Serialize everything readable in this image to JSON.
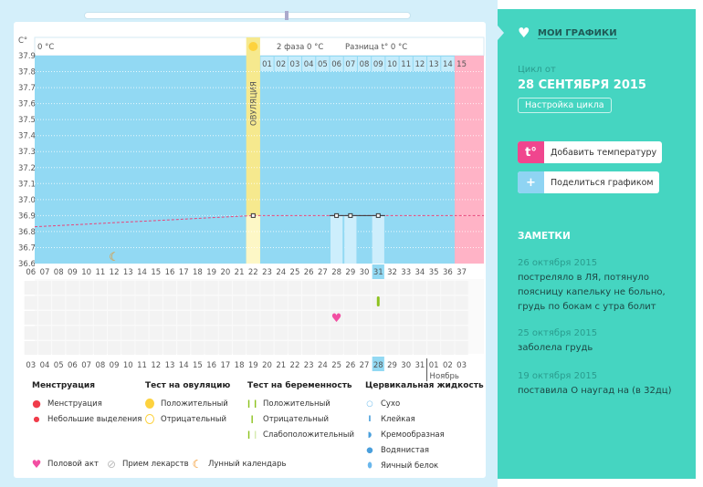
{
  "chart_data": {
    "type": "line",
    "ylabel": "C°",
    "ylim": [
      36.6,
      37.9
    ],
    "yticks": [
      "37.9",
      "37.8",
      "37.7",
      "37.6",
      "37.5",
      "37.4",
      "37.3",
      "37.2",
      "37.1",
      "37.0",
      "36.9",
      "36.8",
      "36.7",
      "36.6"
    ],
    "cycle_days": [
      6,
      7,
      8,
      9,
      10,
      11,
      12,
      13,
      14,
      15,
      16,
      17,
      18,
      19,
      20,
      21,
      22,
      23,
      24,
      25,
      26,
      27,
      28,
      29,
      30,
      31,
      32,
      33,
      34,
      35,
      36,
      37
    ],
    "dates": [
      "03",
      "04",
      "05",
      "06",
      "07",
      "08",
      "09",
      "10",
      "11",
      "12",
      "13",
      "14",
      "15",
      "16",
      "17",
      "18",
      "19",
      "20",
      "21",
      "22",
      "23",
      "24",
      "25",
      "26",
      "27",
      "28",
      "29",
      "30",
      "31",
      "01",
      "02",
      "03"
    ],
    "weekend_dates_idx": [
      0,
      1,
      7,
      8,
      14,
      15,
      21,
      22,
      28,
      29
    ],
    "month_label": "Ноябрь",
    "phase1_label": "0 °C",
    "phase2_label": "2 фаза 0 °C",
    "diff_label": "Разница t° 0 °C",
    "ovulation_label": "ОВУЛЯЦИЯ",
    "ovulation_day": 22,
    "phase2_numbers": [
      "01",
      "02",
      "03",
      "04",
      "05",
      "06",
      "07",
      "08",
      "09",
      "10",
      "11",
      "12",
      "13",
      "14",
      "15"
    ],
    "points": [
      {
        "day": 22,
        "t": 36.9
      },
      {
        "day": 28,
        "t": 36.9
      },
      {
        "day": 29,
        "t": 36.9
      },
      {
        "day": 31,
        "t": 36.9
      }
    ],
    "coverline_start": 36.83,
    "highlight_day": 31,
    "moon_day": 12,
    "heart_day": 28,
    "pregnancy_test_day": 31,
    "colors": {
      "plot": "#92d9f3",
      "ovulation": "#f6e98e",
      "menses": "#ffb3c6",
      "line": "#e8457a",
      "bar": "#cdeefc"
    }
  },
  "legend": {
    "menstruation": {
      "title": "Менструация",
      "items": [
        "Менструация",
        "Небольшие выделения"
      ]
    },
    "ovulation_test": {
      "title": "Тест на овуляцию",
      "items": [
        "Положительный",
        "Отрицательный"
      ]
    },
    "pregnancy_test": {
      "title": "Тест на беременность",
      "items": [
        "Положительный",
        "Отрицательный",
        "Слабоположительный"
      ]
    },
    "cervical": {
      "title": "Цервикальная жидкость",
      "items": [
        "Сухо",
        "Клейкая",
        "Кремообразная",
        "Водянистая",
        "Яичный белок"
      ]
    },
    "other": [
      "Половой акт",
      "Прием лекарств",
      "Лунный календарь"
    ]
  },
  "sidebar": {
    "my_charts": "МОИ ГРАФИКИ",
    "cycle_label": "Цикл от",
    "cycle_date": "28 СЕНТЯБРЯ 2015",
    "cycle_settings": "Настройка цикла",
    "add_temp_icon": "t°",
    "add_temp": "Добавить температуру",
    "share": "Поделиться графиком",
    "notes_title": "ЗАМЕТКИ",
    "notes": [
      {
        "date": "26 октября 2015",
        "text": "постреляло в ЛЯ, потянуло поясницу капельку не больно, грудь по бокам с утра болит"
      },
      {
        "date": "25 октября 2015",
        "text": "заболела грудь"
      },
      {
        "date": "19 октября 2015",
        "text": "поставила О наугад на (в 32дц)"
      }
    ]
  }
}
